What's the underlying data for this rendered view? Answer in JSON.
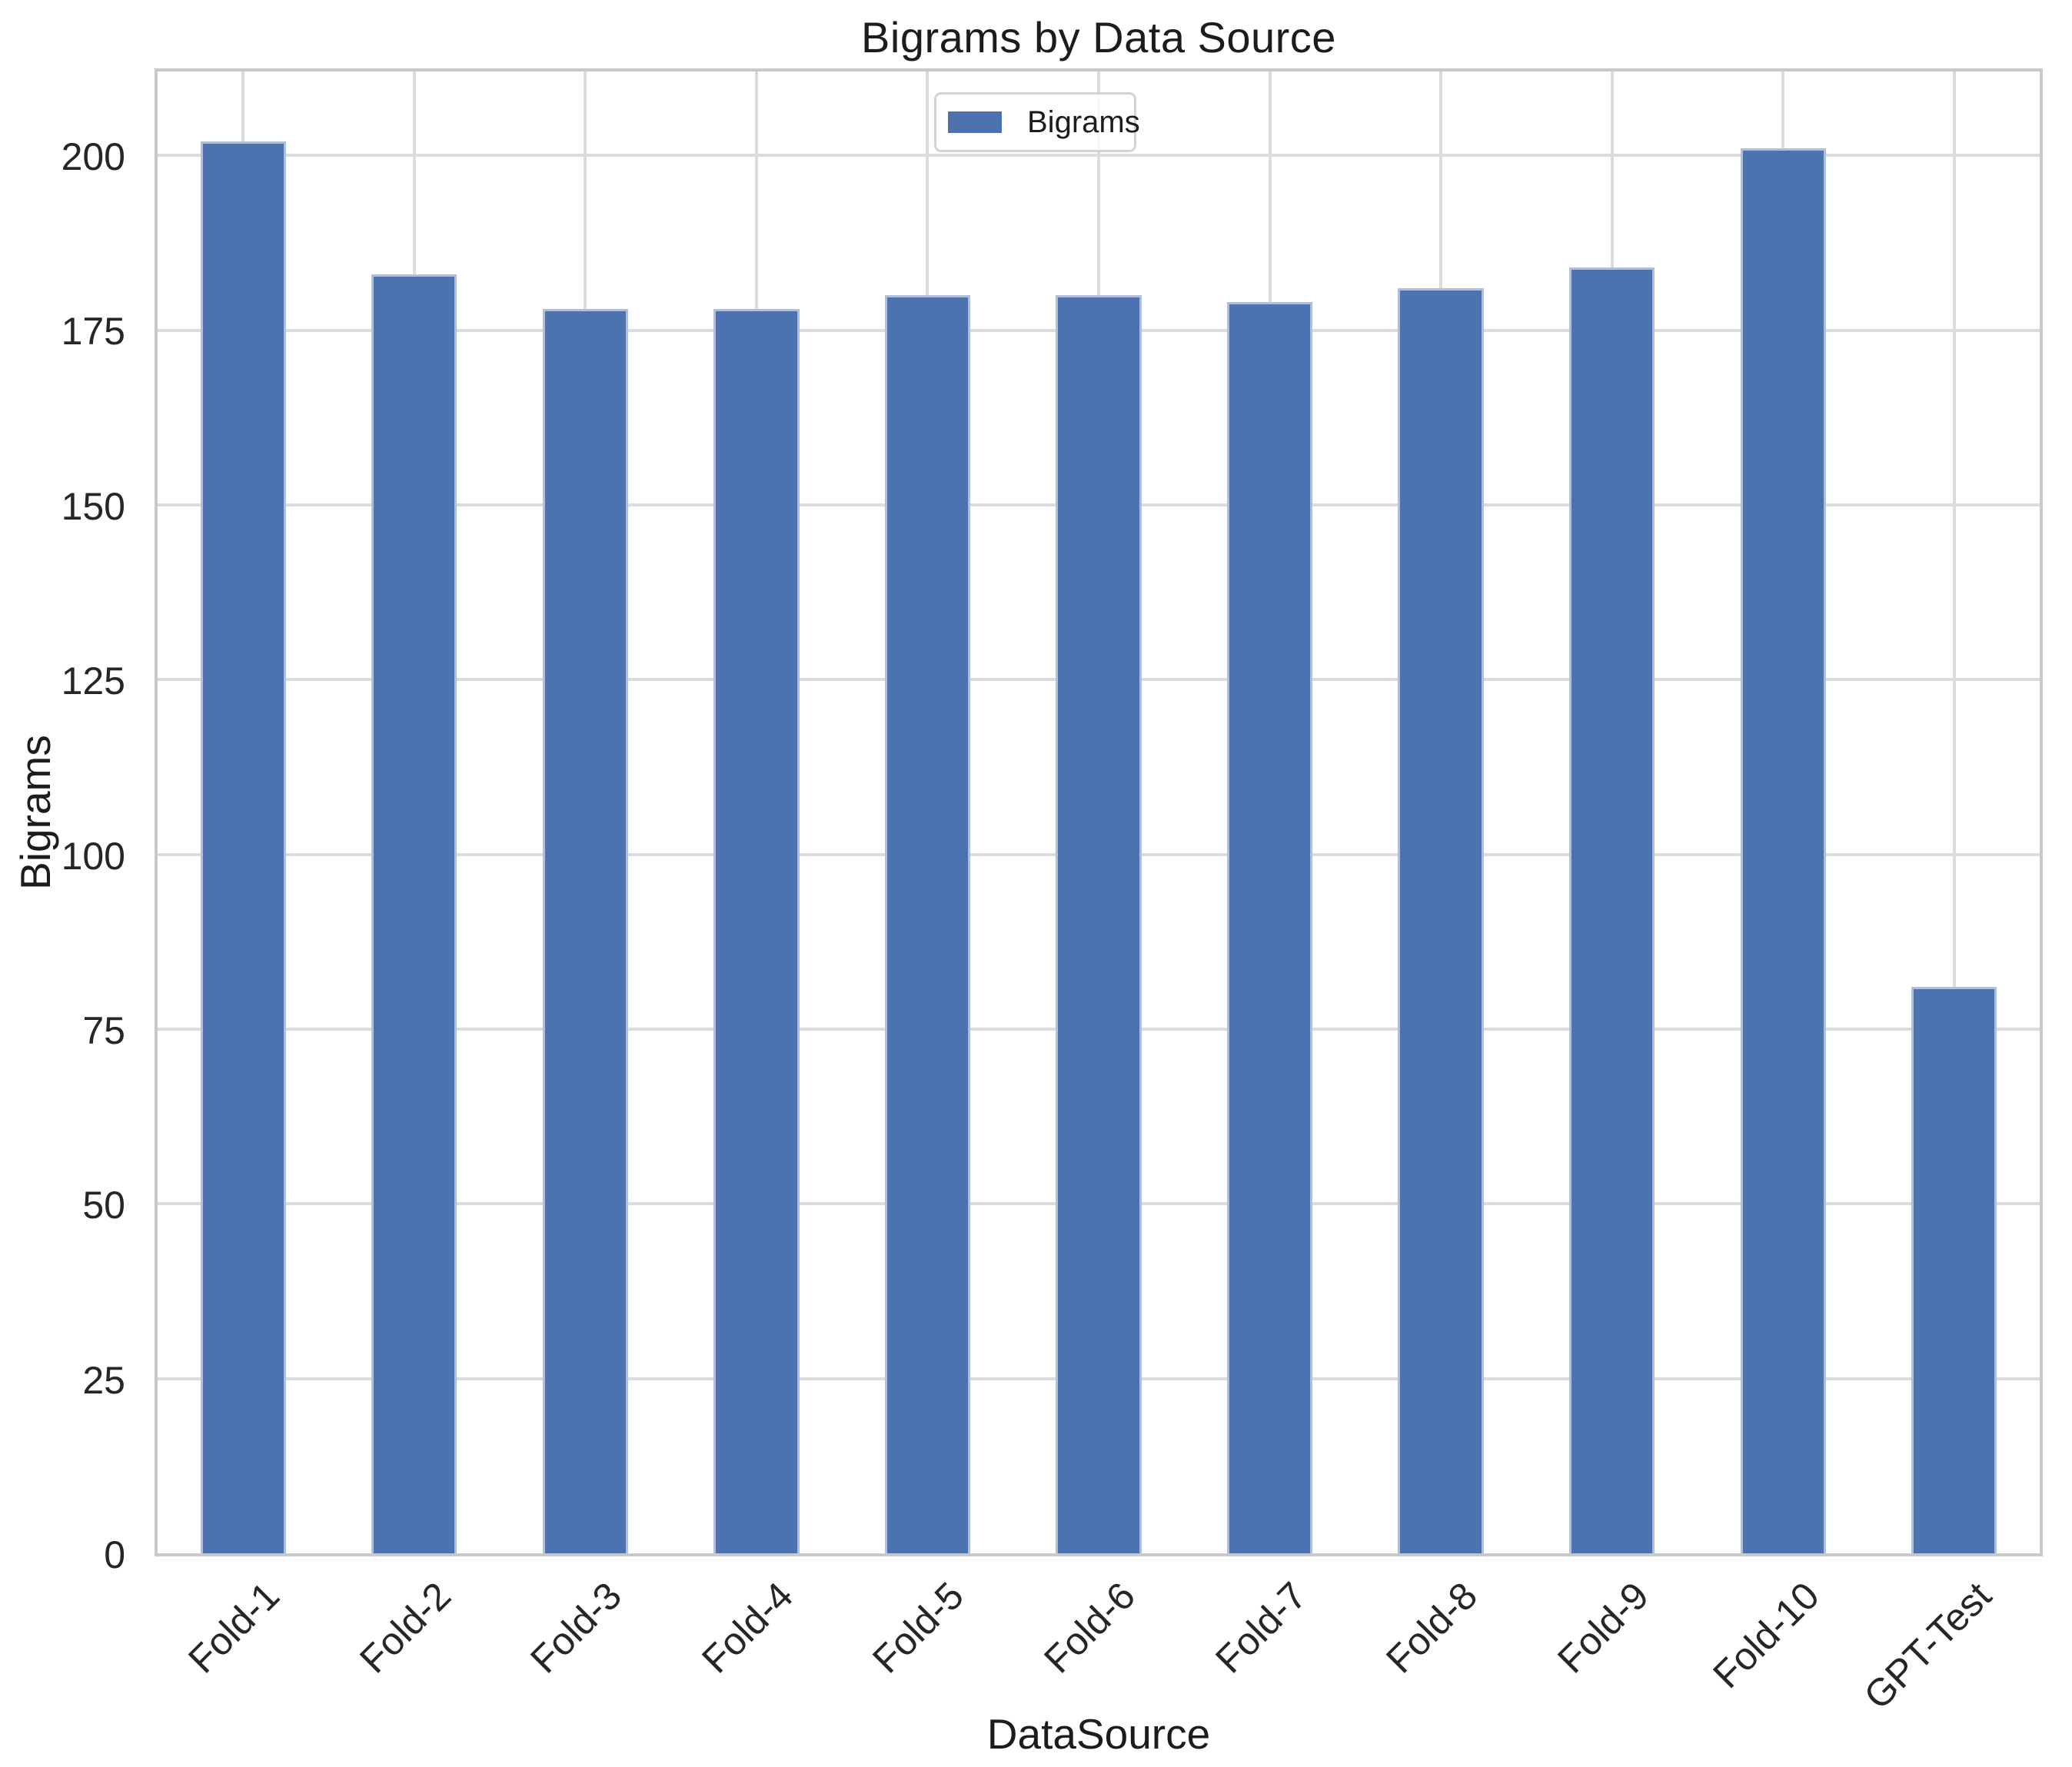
{
  "chart": {
    "title": "Bigrams by Data Source",
    "xlabel": "DataSource",
    "ylabel": "Bigrams",
    "legend_label": "Bigrams"
  },
  "chart_data": {
    "type": "bar",
    "title": "Bigrams by Data Source",
    "xlabel": "DataSource",
    "ylabel": "Bigrams",
    "categories": [
      "Fold-1",
      "Fold-2",
      "Fold-3",
      "Fold-4",
      "Fold-5",
      "Fold-6",
      "Fold-7",
      "Fold-8",
      "Fold-9",
      "Fold-10",
      "GPT-Test"
    ],
    "series": [
      {
        "name": "Bigrams",
        "values": [
          202,
          183,
          178,
          178,
          180,
          180,
          179,
          181,
          184,
          201,
          81
        ]
      }
    ],
    "ylim": [
      0,
      212
    ],
    "yticks": [
      0,
      25,
      50,
      75,
      100,
      125,
      150,
      175,
      200
    ],
    "grid": true,
    "x_tick_rotation_deg": 45,
    "legend": {
      "labels": [
        "Bigrams"
      ],
      "position": "upper center"
    },
    "bar_color": "#4c72b0",
    "bar_width_fraction": 0.5
  },
  "colors": {
    "bar": "#4c72b0",
    "bar_edge": "rgba(255,255,255,0.55)",
    "grid": "#dcdcdc",
    "spine": "#c9c9c9",
    "text": "#262626",
    "title_text": "#1c1c1c",
    "background": "#ffffff",
    "legend_border": "#d3d3d3",
    "legend_background": "rgba(255,255,255,0.8)"
  }
}
